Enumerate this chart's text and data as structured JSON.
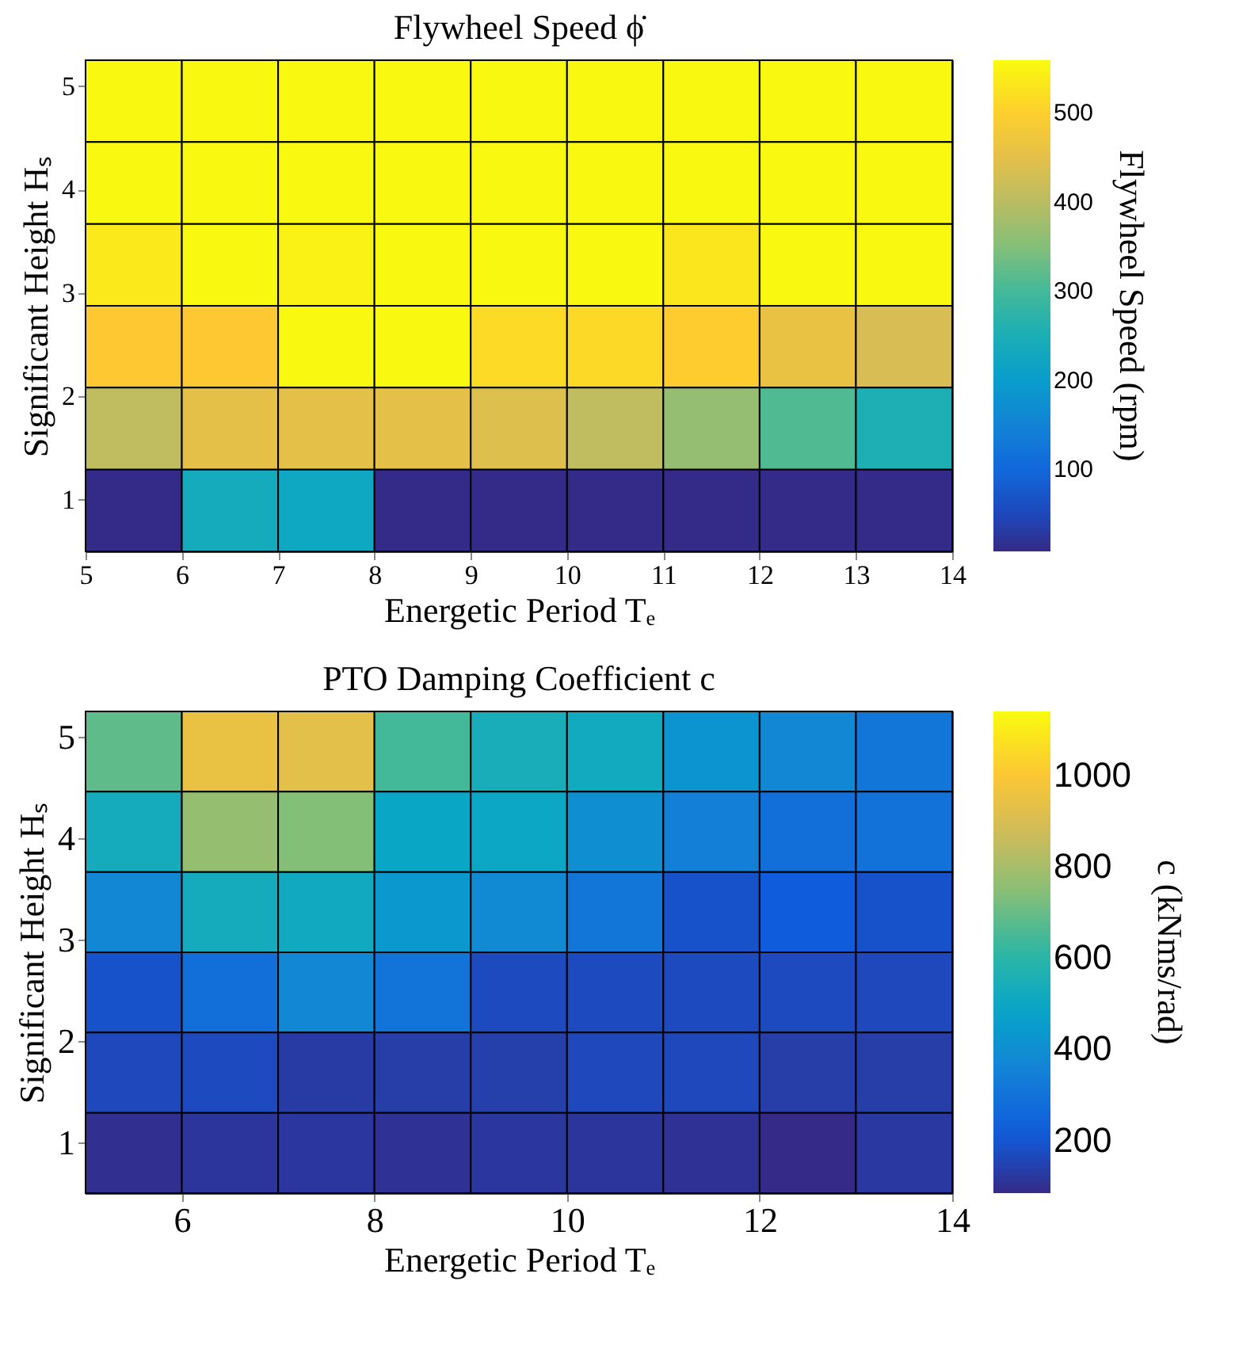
{
  "chart_data": [
    {
      "type": "heatmap",
      "title": "Flywheel Speed ϕ̇",
      "xlabel": "Energetic Period Tₑ",
      "ylabel": "Significant Height Hₛ",
      "clabel": "Flywheel Speed (rpm)",
      "xlim": [
        5,
        14
      ],
      "xticks": [
        5,
        6,
        7,
        8,
        9,
        10,
        11,
        12,
        13,
        14
      ],
      "ylim": [
        0.5,
        5.25
      ],
      "yticks": [
        1,
        2,
        3,
        4,
        5
      ],
      "clim": [
        8,
        559
      ],
      "cticks": [
        100,
        200,
        300,
        400,
        500
      ],
      "cells": [
        [
          555,
          555,
          555,
          555,
          555,
          555,
          555,
          555,
          555
        ],
        [
          555,
          555,
          555,
          555,
          555,
          555,
          555,
          555,
          555
        ],
        [
          535,
          555,
          545,
          555,
          555,
          555,
          530,
          555,
          555
        ],
        [
          490,
          490,
          555,
          555,
          515,
          512,
          495,
          460,
          430
        ],
        [
          405,
          450,
          450,
          450,
          440,
          405,
          365,
          310,
          255
        ],
        [
          10,
          240,
          228,
          10,
          10,
          10,
          10,
          10,
          10
        ]
      ]
    },
    {
      "type": "heatmap",
      "title": "PTO Damping Coefficient c",
      "xlabel": "Energetic Period Tₑ",
      "ylabel": "Significant Height Hₛ",
      "clabel": "c (kNms/rad)",
      "xlim": [
        5,
        14
      ],
      "xticks": [
        6,
        8,
        10,
        12,
        14
      ],
      "ylim": [
        0.5,
        5.25
      ],
      "yticks": [
        1,
        2,
        3,
        4,
        5
      ],
      "clim": [
        85,
        1140
      ],
      "cticks": [
        200,
        400,
        600,
        800,
        1000
      ],
      "cells": [
        [
          686,
          950,
          930,
          645,
          540,
          520,
          420,
          370,
          305
        ],
        [
          530,
          770,
          740,
          495,
          500,
          400,
          340,
          285,
          295
        ],
        [
          370,
          530,
          515,
          435,
          380,
          305,
          190,
          220,
          190
        ],
        [
          190,
          285,
          370,
          300,
          170,
          170,
          170,
          170,
          165
        ],
        [
          165,
          170,
          130,
          135,
          140,
          165,
          165,
          135,
          135
        ],
        [
          100,
          115,
          120,
          105,
          120,
          115,
          105,
          85,
          125
        ]
      ]
    }
  ]
}
